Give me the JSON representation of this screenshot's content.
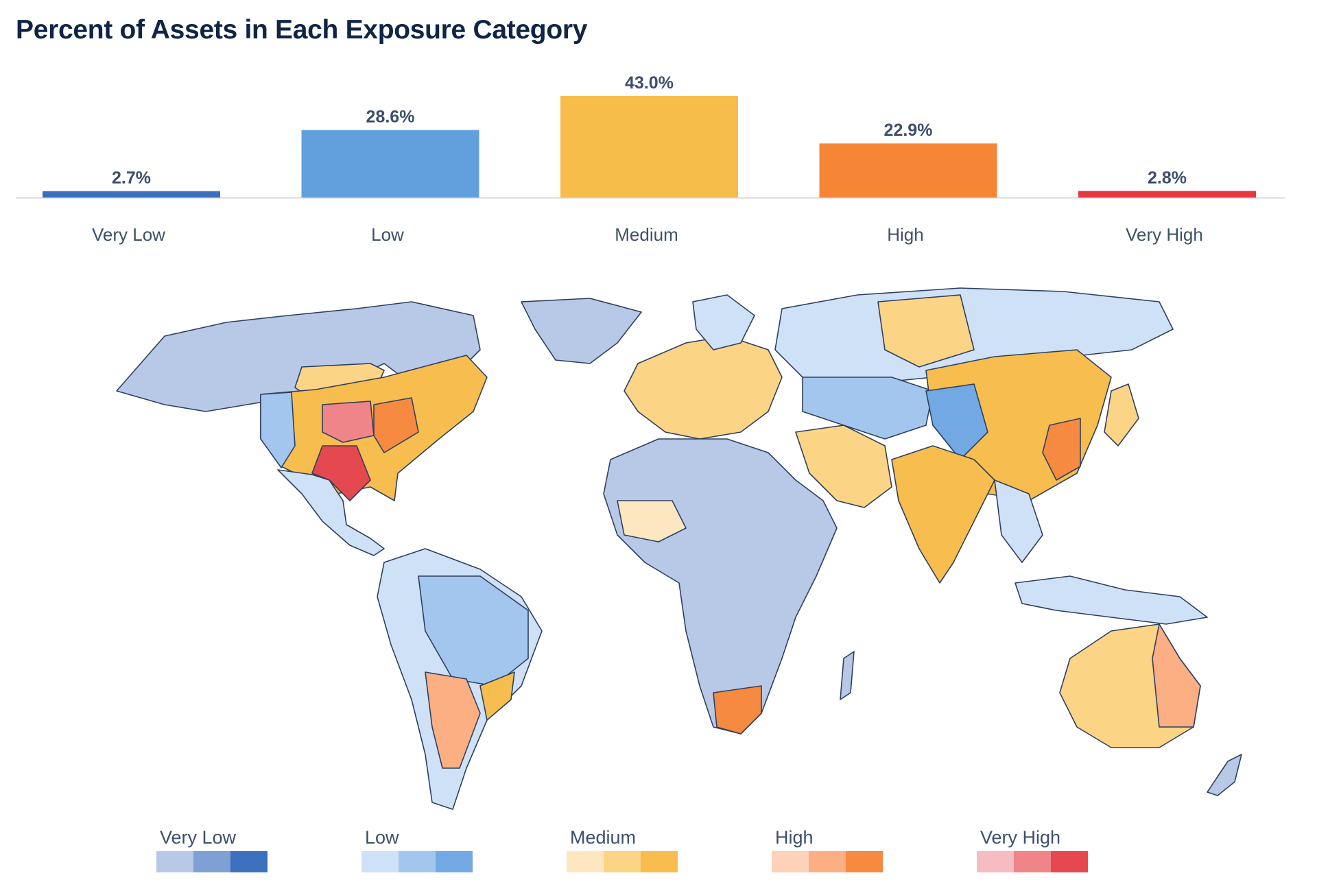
{
  "title": "Percent of Assets in Each Exposure Category",
  "chart_data": [
    {
      "type": "bar",
      "categories": [
        "Very Low",
        "Low",
        "Medium",
        "High",
        "Very High"
      ],
      "values": [
        2.7,
        28.6,
        43.0,
        22.9,
        2.8
      ],
      "value_labels": [
        "2.7%",
        "28.6%",
        "43.0%",
        "22.9%",
        "2.8%"
      ],
      "colors": [
        "#3a6fbe",
        "#62a0dd",
        "#f7bd4b",
        "#f68636",
        "#e3393f"
      ],
      "ylim": [
        0,
        43.0
      ],
      "grid": false
    }
  ],
  "map": {
    "land_color": "#d3d8e2",
    "border_color": "#2e3f5e",
    "regions": [
      {
        "name": "United States",
        "level": "Medium"
      },
      {
        "name": "Canada",
        "level": "Very Low"
      },
      {
        "name": "Mexico",
        "level": "Low"
      },
      {
        "name": "Brazil",
        "level": "Low"
      },
      {
        "name": "Argentina",
        "level": "High"
      },
      {
        "name": "Russia",
        "level": "Low"
      },
      {
        "name": "China",
        "level": "Medium"
      },
      {
        "name": "India",
        "level": "Medium"
      },
      {
        "name": "Australia",
        "level": "Medium"
      },
      {
        "name": "Europe",
        "level": "Medium"
      },
      {
        "name": "Africa",
        "level": "Very Low"
      },
      {
        "name": "Middle East",
        "level": "Medium"
      }
    ]
  },
  "legend": {
    "groups": [
      {
        "label": "Very Low",
        "colors": [
          "#b8c9e8",
          "#7ea0d4",
          "#3c6fbe"
        ]
      },
      {
        "label": "Low",
        "colors": [
          "#cfe1f7",
          "#a3c6ee",
          "#72a8e3"
        ]
      },
      {
        "label": "Medium",
        "colors": [
          "#fde7c1",
          "#fcd486",
          "#f7bd4e"
        ]
      },
      {
        "label": "High",
        "colors": [
          "#fdd2b8",
          "#fbaf83",
          "#f68a41"
        ]
      },
      {
        "label": "Very High",
        "colors": [
          "#f6bcc0",
          "#ef8489",
          "#e5484e"
        ]
      }
    ]
  }
}
